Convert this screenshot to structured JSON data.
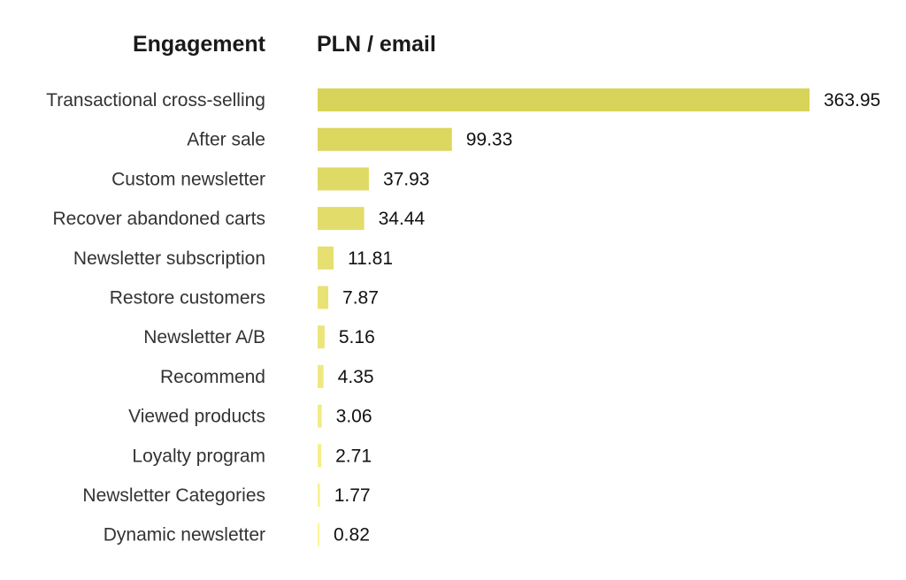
{
  "chart_data": {
    "type": "bar",
    "orientation": "horizontal",
    "category_header": "Engagement",
    "value_header": "PLN / email",
    "categories": [
      "Transactional cross-selling",
      "After sale",
      "Custom newsletter",
      "Recover abandoned carts",
      "Newsletter subscription",
      "Restore customers",
      "Newsletter A/B",
      "Recommend",
      "Viewed products",
      "Loyalty program",
      "Newsletter Categories",
      "Dynamic newsletter"
    ],
    "values": [
      363.95,
      99.33,
      37.93,
      34.44,
      11.81,
      7.87,
      5.16,
      4.35,
      3.06,
      2.71,
      1.77,
      0.82
    ],
    "value_labels": [
      "363.95",
      "99.33",
      "37.93",
      "34.44",
      "11.81",
      "7.87",
      "5.16",
      "4.35",
      "3.06",
      "2.71",
      "1.77",
      "0.82"
    ],
    "xlim": [
      0,
      363.95
    ],
    "grid": false,
    "legend": "none",
    "colors": {
      "bar_start": "#d8d45a",
      "bar_end": "#fbf594"
    }
  }
}
